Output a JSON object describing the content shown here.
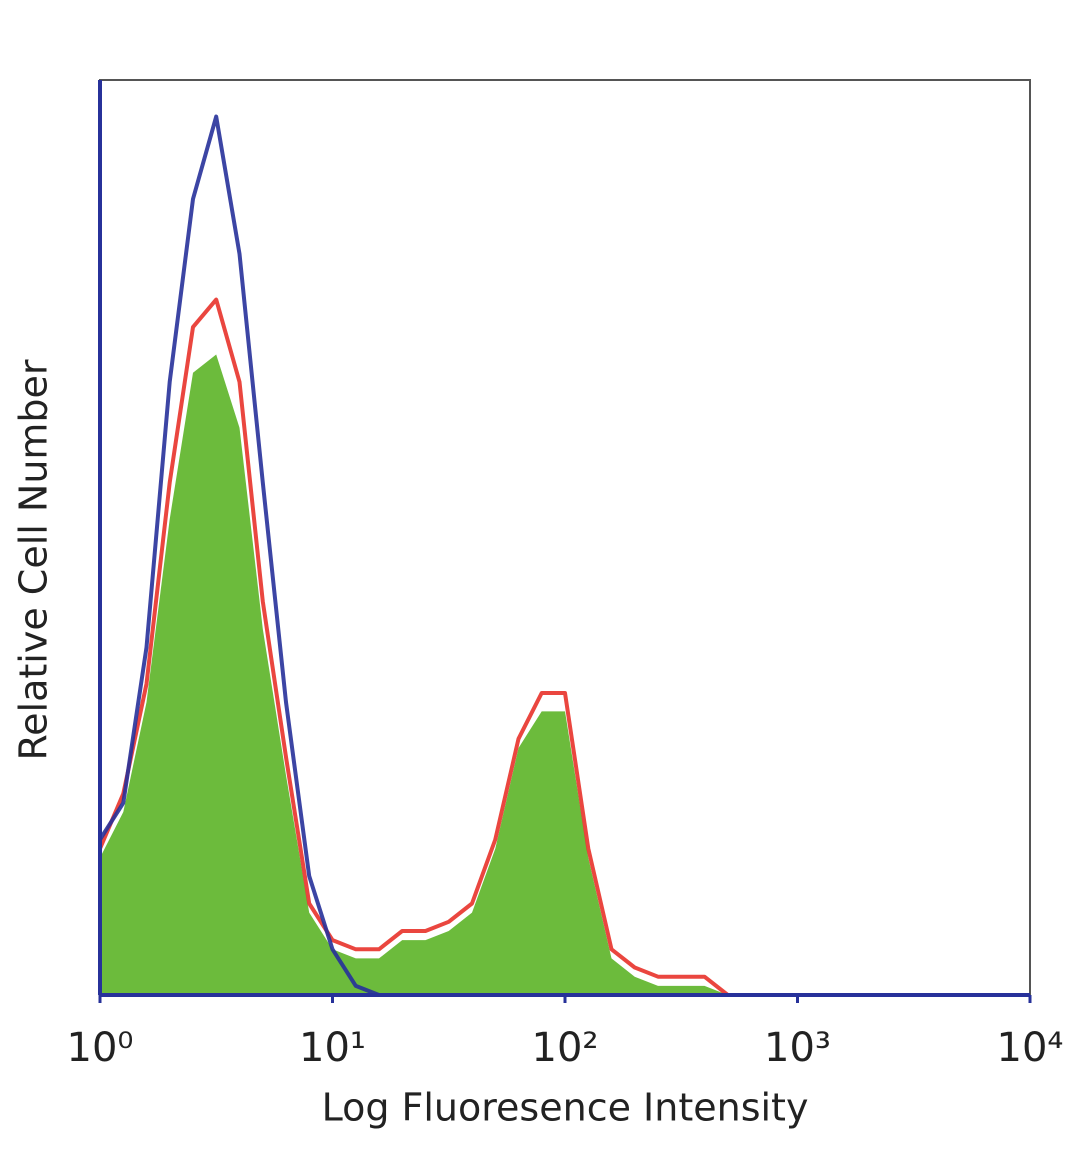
{
  "chart_data": {
    "type": "line",
    "xlabel": "Log Fluoresence Intensity",
    "ylabel": "Relative Cell Number",
    "xscale": "log",
    "xlim": [
      1,
      10000
    ],
    "xticks": [
      {
        "value": 1,
        "label": "10⁰"
      },
      {
        "value": 10,
        "label": "10¹"
      },
      {
        "value": 100,
        "label": "10²"
      },
      {
        "value": 1000,
        "label": "10³"
      },
      {
        "value": 10000,
        "label": "10⁴"
      }
    ],
    "ylim": [
      0,
      100
    ],
    "x": [
      1,
      1.259,
      1.585,
      1.995,
      2.512,
      3.162,
      3.981,
      5.012,
      6.31,
      7.943,
      10,
      12.59,
      15.85,
      19.95,
      25.12,
      31.62,
      39.81,
      50.12,
      63.1,
      79.43,
      100,
      125.9,
      158.5,
      199.5,
      251.2,
      316.2,
      398.1,
      501.2,
      631,
      794.3
    ],
    "series": [
      {
        "color": "#6cbb3c",
        "fill": true,
        "values": [
          15,
          20,
          32,
          52,
          68,
          70,
          62,
          40,
          24,
          9,
          5,
          4,
          4,
          6,
          6,
          7,
          9,
          16,
          27,
          31,
          31,
          15,
          4,
          2,
          1,
          1,
          1,
          0,
          0,
          0
        ]
      },
      {
        "color": "#e8322a",
        "fill": false,
        "values": [
          16,
          22,
          34,
          56,
          73,
          76,
          67,
          43,
          26,
          10,
          6,
          5,
          5,
          7,
          7,
          8,
          10,
          17,
          28,
          33,
          33,
          16,
          5,
          3,
          2,
          2,
          2,
          0,
          0,
          0
        ]
      },
      {
        "color": "#27319a",
        "fill": false,
        "values": [
          17,
          21,
          38,
          67,
          87,
          96,
          81,
          56,
          32,
          13,
          5,
          1,
          0,
          0,
          0,
          0,
          0,
          0,
          0,
          0,
          0,
          0,
          0,
          0,
          0,
          0,
          0,
          0,
          0,
          0
        ]
      }
    ]
  }
}
